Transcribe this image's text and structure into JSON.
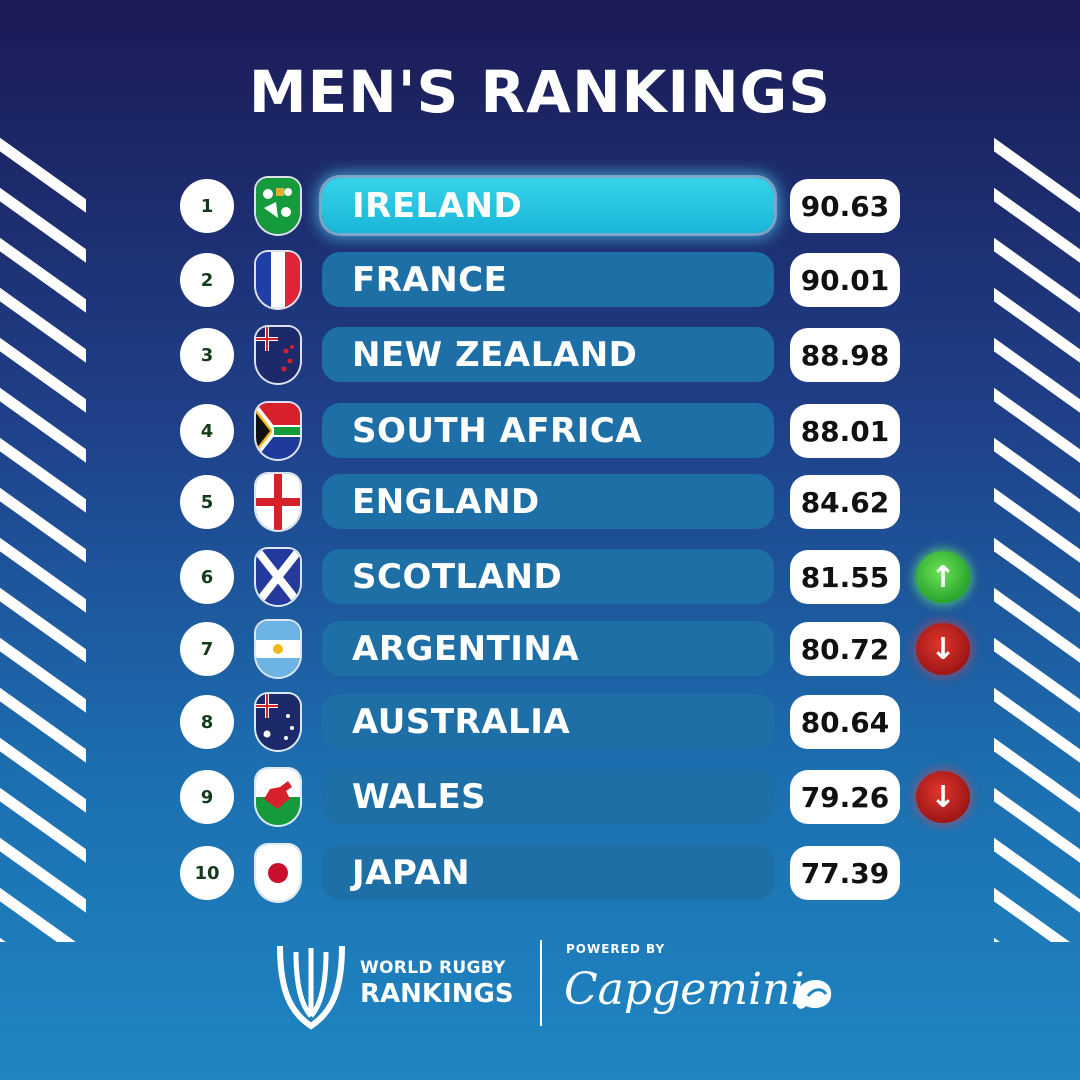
{
  "title": "MEN'S RANKINGS",
  "rankings": [
    {
      "rank": "1",
      "team": "IRELAND",
      "points": "90.63",
      "movement": "",
      "flag": "ireland-flag-icon"
    },
    {
      "rank": "2",
      "team": "FRANCE",
      "points": "90.01",
      "movement": "",
      "flag": "france-flag-icon"
    },
    {
      "rank": "3",
      "team": "NEW ZEALAND",
      "points": "88.98",
      "movement": "",
      "flag": "new-zealand-flag-icon"
    },
    {
      "rank": "4",
      "team": "SOUTH AFRICA",
      "points": "88.01",
      "movement": "",
      "flag": "south-africa-flag-icon"
    },
    {
      "rank": "5",
      "team": "ENGLAND",
      "points": "84.62",
      "movement": "",
      "flag": "england-flag-icon"
    },
    {
      "rank": "6",
      "team": "SCOTLAND",
      "points": "81.55",
      "movement": "up",
      "flag": "scotland-flag-icon"
    },
    {
      "rank": "7",
      "team": "ARGENTINA",
      "points": "80.72",
      "movement": "down",
      "flag": "argentina-flag-icon"
    },
    {
      "rank": "8",
      "team": "AUSTRALIA",
      "points": "80.64",
      "movement": "",
      "flag": "australia-flag-icon"
    },
    {
      "rank": "9",
      "team": "WALES",
      "points": "79.26",
      "movement": "down",
      "flag": "wales-flag-icon"
    },
    {
      "rank": "10",
      "team": "JAPAN",
      "points": "77.39",
      "movement": "",
      "flag": "japan-flag-icon"
    }
  ],
  "footer": {
    "wr_line1": "WORLD RUGBY",
    "wr_line2": "RANKINGS",
    "powered_by": "POWERED BY",
    "sponsor": "Capgemini"
  },
  "colors": {
    "highlight": "#1ab6d8",
    "bar": "#1d6fa6",
    "up": "#2aa52d",
    "down": "#9a1515"
  },
  "icons": {
    "up": "up-arrow-icon",
    "down": "down-arrow-icon",
    "world_rugby": "world-rugby-logo-icon",
    "capgemini": "capgemini-spade-icon"
  }
}
